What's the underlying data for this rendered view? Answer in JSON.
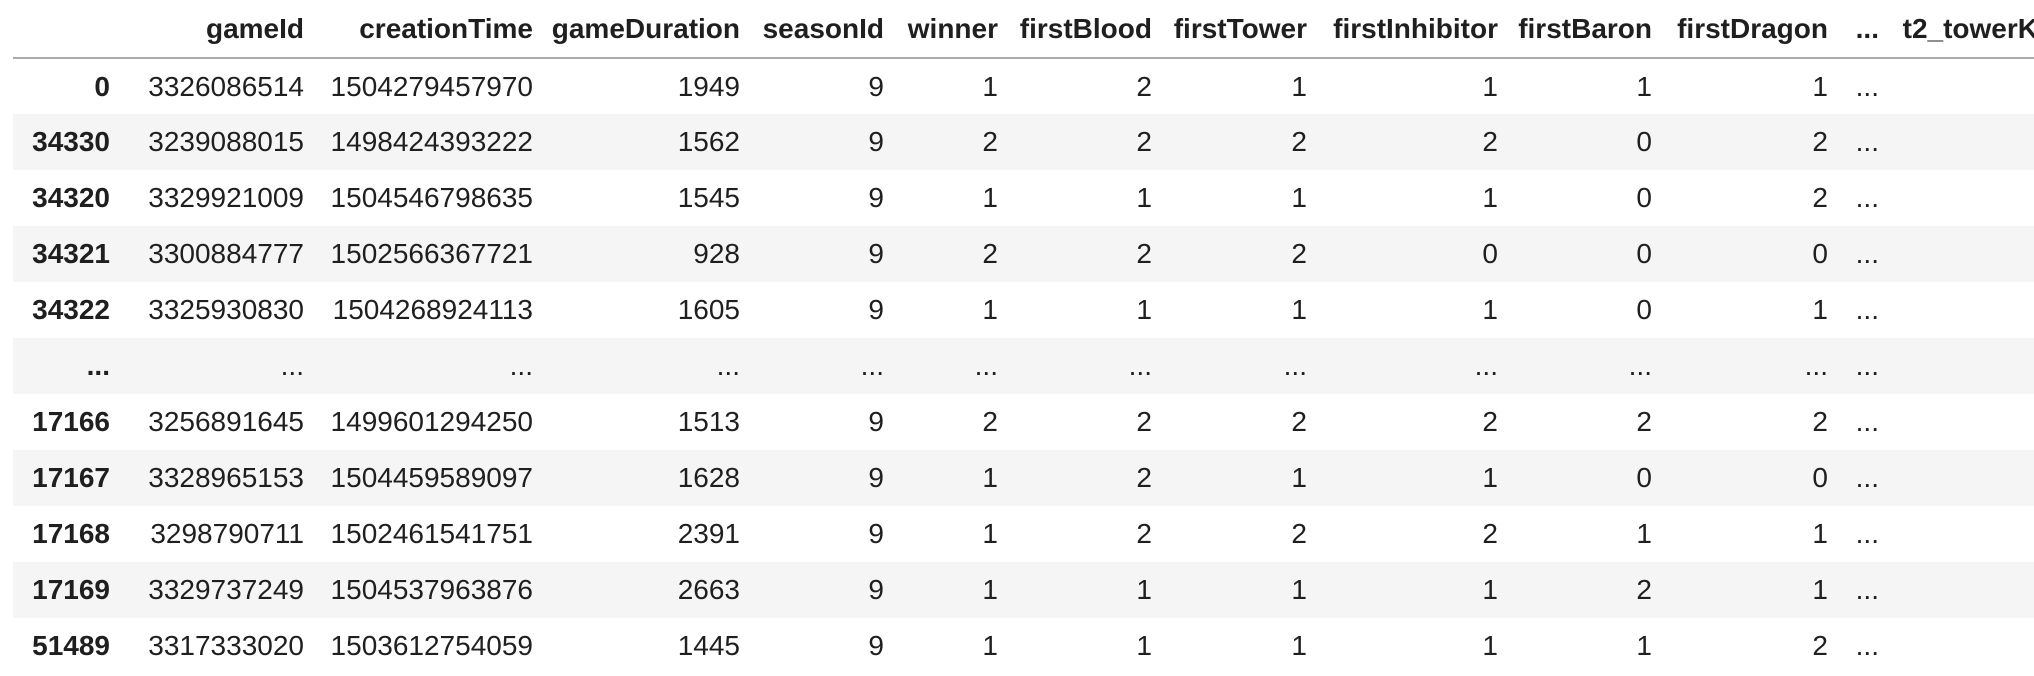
{
  "dataframe": {
    "columns": [
      "",
      "gameId",
      "creationTime",
      "gameDuration",
      "seasonId",
      "winner",
      "firstBlood",
      "firstTower",
      "firstInhibitor",
      "firstBaron",
      "firstDragon",
      "...",
      "t2_towerK"
    ],
    "rows": [
      {
        "index": "0",
        "cells": [
          "3326086514",
          "1504279457970",
          "1949",
          "9",
          "1",
          "2",
          "1",
          "1",
          "1",
          "1",
          "...",
          ""
        ]
      },
      {
        "index": "34330",
        "cells": [
          "3239088015",
          "1498424393222",
          "1562",
          "9",
          "2",
          "2",
          "2",
          "2",
          "0",
          "2",
          "...",
          ""
        ]
      },
      {
        "index": "34320",
        "cells": [
          "3329921009",
          "1504546798635",
          "1545",
          "9",
          "1",
          "1",
          "1",
          "1",
          "0",
          "2",
          "...",
          ""
        ]
      },
      {
        "index": "34321",
        "cells": [
          "3300884777",
          "1502566367721",
          "928",
          "9",
          "2",
          "2",
          "2",
          "0",
          "0",
          "0",
          "...",
          ""
        ]
      },
      {
        "index": "34322",
        "cells": [
          "3325930830",
          "1504268924113",
          "1605",
          "9",
          "1",
          "1",
          "1",
          "1",
          "0",
          "1",
          "...",
          ""
        ]
      },
      {
        "index": "...",
        "cells": [
          "...",
          "...",
          "...",
          "...",
          "...",
          "...",
          "...",
          "...",
          "...",
          "...",
          "...",
          ""
        ]
      },
      {
        "index": "17166",
        "cells": [
          "3256891645",
          "1499601294250",
          "1513",
          "9",
          "2",
          "2",
          "2",
          "2",
          "2",
          "2",
          "...",
          ""
        ]
      },
      {
        "index": "17167",
        "cells": [
          "3328965153",
          "1504459589097",
          "1628",
          "9",
          "1",
          "2",
          "1",
          "1",
          "0",
          "0",
          "...",
          ""
        ]
      },
      {
        "index": "17168",
        "cells": [
          "3298790711",
          "1502461541751",
          "2391",
          "9",
          "1",
          "2",
          "2",
          "2",
          "1",
          "1",
          "...",
          ""
        ]
      },
      {
        "index": "17169",
        "cells": [
          "3329737249",
          "1504537963876",
          "2663",
          "9",
          "1",
          "1",
          "1",
          "1",
          "2",
          "1",
          "...",
          ""
        ]
      },
      {
        "index": "51489",
        "cells": [
          "3317333020",
          "1503612754059",
          "1445",
          "9",
          "1",
          "1",
          "1",
          "1",
          "1",
          "2",
          "...",
          ""
        ]
      }
    ],
    "colors": {
      "background": "#ffffff",
      "text": "#1f1f1f",
      "stripe": "#f5f5f5",
      "header_rule": "#ababab"
    }
  }
}
